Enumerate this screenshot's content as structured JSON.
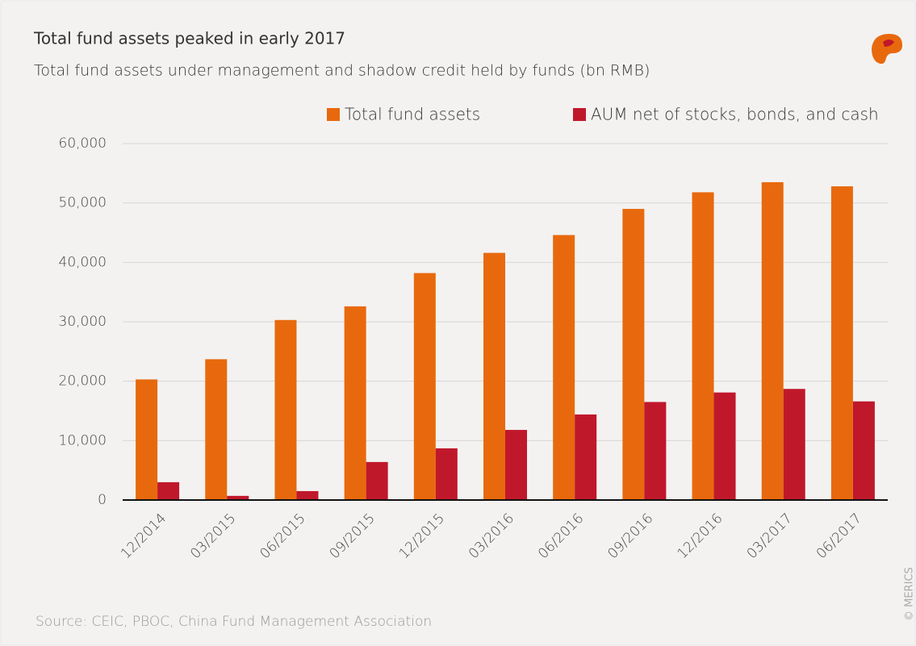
{
  "chart_data": {
    "type": "bar",
    "title": "Total fund assets peaked in early 2017",
    "subtitle": "Total fund assets under management and shadow credit held by funds (bn RMB)",
    "source": "Source: CEIC, PBOC, China Fund Management Association",
    "credit": "© MERICS",
    "categories": [
      "12/2014",
      "03/2015",
      "06/2015",
      "09/2015",
      "12/2015",
      "03/2016",
      "06/2016",
      "09/2016",
      "12/2016",
      "03/2017",
      "06/2017"
    ],
    "series": [
      {
        "name": "Total fund assets",
        "color": "#e8690d",
        "values": [
          20300,
          23700,
          30300,
          32600,
          38200,
          41600,
          44600,
          49000,
          51800,
          53500,
          52800
        ]
      },
      {
        "name": "AUM net of stocks, bonds, and cash",
        "color": "#c0182b",
        "values": [
          3000,
          700,
          1500,
          6400,
          8700,
          11800,
          14400,
          16500,
          18100,
          18700,
          16600
        ]
      }
    ],
    "ylim": [
      0,
      60000
    ],
    "yticks": [
      0,
      {
        "value": 10000,
        "label": "10,000"
      },
      {
        "value": 20000,
        "label": "20,000"
      },
      {
        "value": 30000,
        "label": "30,000"
      },
      {
        "value": 40000,
        "label": "40,000"
      },
      {
        "value": 50000,
        "label": "50,000"
      },
      {
        "value": 60000,
        "label": "60,000"
      }
    ],
    "grid": true,
    "legend": "top-right"
  }
}
